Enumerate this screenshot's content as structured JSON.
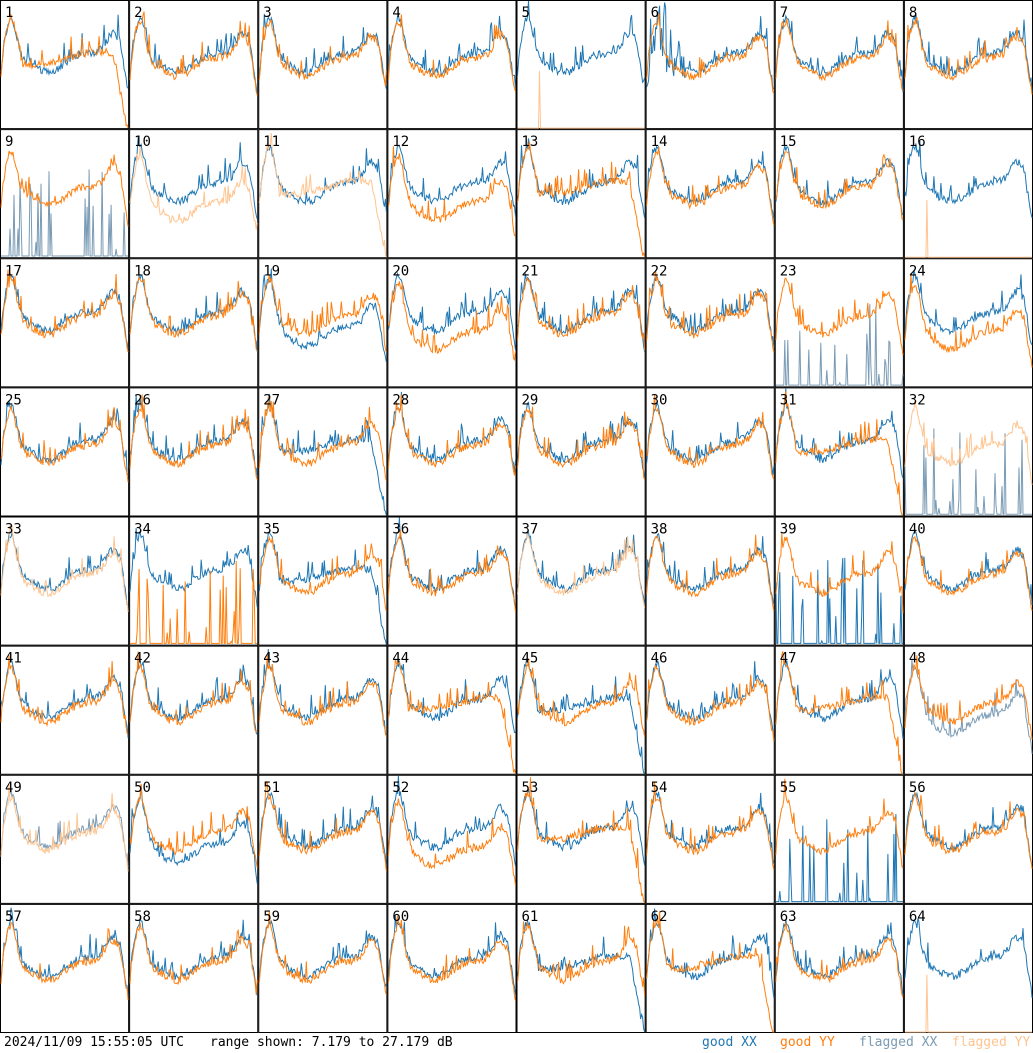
{
  "footer": {
    "timestamp": "2024/11/09 15:55:05 UTC",
    "range_text": "range shown: 7.179 to 27.179 dB",
    "legend": [
      {
        "label": "good XX",
        "color": "#1f77b4"
      },
      {
        "label": "good YY",
        "color": "#ff7f0e"
      },
      {
        "label": "flagged XX",
        "color": "#7a9bb5"
      },
      {
        "label": "flagged YY",
        "color": "#ffc48f"
      }
    ]
  },
  "chart_data": {
    "type": "line",
    "layout": "8x8 small multiples",
    "ylim": [
      7.179,
      27.179
    ],
    "yunit": "dB",
    "grid": false,
    "panels": [
      {
        "id": "1",
        "xx": "good",
        "yy": "good",
        "yy_shape": "drop"
      },
      {
        "id": "2",
        "xx": "good",
        "yy": "good"
      },
      {
        "id": "3",
        "xx": "good",
        "yy": "good"
      },
      {
        "id": "4",
        "xx": "good",
        "yy": "good"
      },
      {
        "id": "5",
        "xx": "good",
        "yy": "flagged",
        "yy_shape": "dead"
      },
      {
        "id": "6",
        "xx": "good",
        "yy": "good",
        "xx_shape": "noisy"
      },
      {
        "id": "7",
        "xx": "good",
        "yy": "good"
      },
      {
        "id": "8",
        "xx": "good",
        "yy": "good"
      },
      {
        "id": "9",
        "xx": "flagged",
        "yy": "good",
        "xx_shape": "spikes"
      },
      {
        "id": "10",
        "xx": "good",
        "yy": "flagged",
        "yy_shape": "low"
      },
      {
        "id": "11",
        "xx": "good",
        "yy": "flagged",
        "yy_shape": "drop"
      },
      {
        "id": "12",
        "xx": "good",
        "yy": "good",
        "yy_shape": "low"
      },
      {
        "id": "13",
        "xx": "good",
        "yy": "good",
        "yy_shape": "drop"
      },
      {
        "id": "14",
        "xx": "good",
        "yy": "good"
      },
      {
        "id": "15",
        "xx": "good",
        "yy": "good"
      },
      {
        "id": "16",
        "xx": "good",
        "yy": "flagged",
        "yy_shape": "dead"
      },
      {
        "id": "17",
        "xx": "good",
        "yy": "good"
      },
      {
        "id": "18",
        "xx": "good",
        "yy": "good"
      },
      {
        "id": "19",
        "xx": "good",
        "yy": "good",
        "xx_shape": "low"
      },
      {
        "id": "20",
        "xx": "good",
        "yy": "good",
        "yy_shape": "low"
      },
      {
        "id": "21",
        "xx": "good",
        "yy": "good"
      },
      {
        "id": "22",
        "xx": "good",
        "yy": "good"
      },
      {
        "id": "23",
        "xx": "flagged",
        "yy": "good",
        "xx_shape": "spikes"
      },
      {
        "id": "24",
        "xx": "good",
        "yy": "good",
        "yy_shape": "low"
      },
      {
        "id": "25",
        "xx": "good",
        "yy": "good"
      },
      {
        "id": "26",
        "xx": "good",
        "yy": "good"
      },
      {
        "id": "27",
        "xx": "good",
        "yy": "good",
        "xx_shape": "drop"
      },
      {
        "id": "28",
        "xx": "good",
        "yy": "good"
      },
      {
        "id": "29",
        "xx": "good",
        "yy": "good"
      },
      {
        "id": "30",
        "xx": "good",
        "yy": "good"
      },
      {
        "id": "31",
        "xx": "good",
        "yy": "good",
        "yy_shape": "drop"
      },
      {
        "id": "32",
        "xx": "flagged",
        "yy": "flagged",
        "xx_shape": "spikes"
      },
      {
        "id": "33",
        "xx": "good",
        "yy": "flagged"
      },
      {
        "id": "34",
        "xx": "good",
        "yy": "good",
        "yy_shape": "spikes"
      },
      {
        "id": "35",
        "xx": "good",
        "yy": "good",
        "xx_shape": "drop"
      },
      {
        "id": "36",
        "xx": "good",
        "yy": "good"
      },
      {
        "id": "37",
        "xx": "good",
        "yy": "flagged"
      },
      {
        "id": "38",
        "xx": "good",
        "yy": "good"
      },
      {
        "id": "39",
        "xx": "good",
        "yy": "good",
        "xx_shape": "spikes"
      },
      {
        "id": "40",
        "xx": "good",
        "yy": "good"
      },
      {
        "id": "41",
        "xx": "good",
        "yy": "good"
      },
      {
        "id": "42",
        "xx": "good",
        "yy": "good"
      },
      {
        "id": "43",
        "xx": "good",
        "yy": "good"
      },
      {
        "id": "44",
        "xx": "good",
        "yy": "good",
        "yy_shape": "drop"
      },
      {
        "id": "45",
        "xx": "good",
        "yy": "good",
        "xx_shape": "drop"
      },
      {
        "id": "46",
        "xx": "good",
        "yy": "good"
      },
      {
        "id": "47",
        "xx": "good",
        "yy": "good",
        "yy_shape": "drop"
      },
      {
        "id": "48",
        "xx": "flagged",
        "yy": "good",
        "xx_shape": "low"
      },
      {
        "id": "49",
        "xx": "flagged",
        "yy": "flagged"
      },
      {
        "id": "50",
        "xx": "good",
        "yy": "good",
        "xx_shape": "low"
      },
      {
        "id": "51",
        "xx": "good",
        "yy": "good"
      },
      {
        "id": "52",
        "xx": "good",
        "yy": "good",
        "yy_shape": "low"
      },
      {
        "id": "53",
        "xx": "good",
        "yy": "good",
        "yy_shape": "drop"
      },
      {
        "id": "54",
        "xx": "good",
        "yy": "good"
      },
      {
        "id": "55",
        "xx": "good",
        "yy": "good",
        "xx_shape": "spikes"
      },
      {
        "id": "56",
        "xx": "good",
        "yy": "good"
      },
      {
        "id": "57",
        "xx": "good",
        "yy": "good"
      },
      {
        "id": "58",
        "xx": "good",
        "yy": "good"
      },
      {
        "id": "59",
        "xx": "good",
        "yy": "good"
      },
      {
        "id": "60",
        "xx": "good",
        "yy": "good"
      },
      {
        "id": "61",
        "xx": "good",
        "yy": "good",
        "xx_shape": "drop"
      },
      {
        "id": "62",
        "xx": "good",
        "yy": "good",
        "yy_shape": "drop"
      },
      {
        "id": "63",
        "xx": "good",
        "yy": "good"
      },
      {
        "id": "64",
        "xx": "good",
        "yy": "flagged",
        "yy_shape": "dead"
      }
    ]
  }
}
